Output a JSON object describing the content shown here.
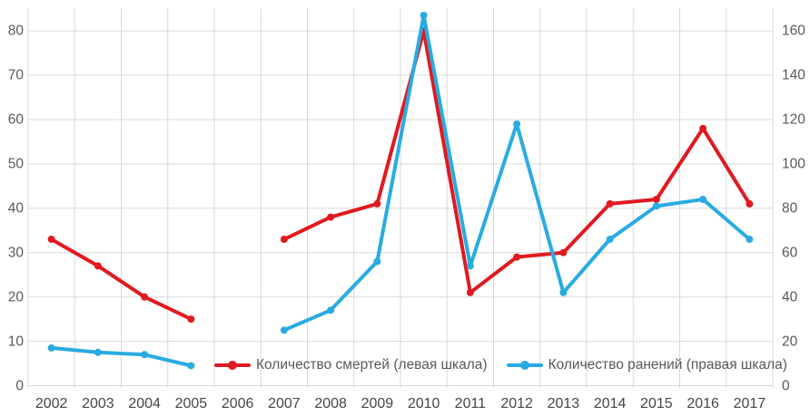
{
  "chart_data": {
    "type": "line",
    "title": "",
    "categories": [
      "2002",
      "2003",
      "2004",
      "2005",
      "2006",
      "2007",
      "2008",
      "2009",
      "2010",
      "2011",
      "2012",
      "2013",
      "2014",
      "2015",
      "2016",
      "2017"
    ],
    "series": [
      {
        "name": "Количество смертей (левая шкала)",
        "axis": "left",
        "color": "#e01a20",
        "values": [
          33,
          27,
          20,
          15,
          null,
          33,
          38,
          41,
          80,
          21,
          29,
          30,
          41,
          42,
          58,
          41
        ]
      },
      {
        "name": "Количество ранений (правая шкала)",
        "axis": "right",
        "color": "#29abe2",
        "values": [
          17,
          15,
          14,
          9,
          null,
          25,
          34,
          56,
          167,
          54,
          118,
          42,
          66,
          81,
          84,
          66
        ]
      }
    ],
    "left_axis": {
      "range": [
        0,
        80
      ],
      "tick_labels": [
        "0",
        "10",
        "20",
        "30",
        "40",
        "50",
        "60",
        "70",
        "80"
      ]
    },
    "right_axis": {
      "range": [
        0,
        160
      ],
      "tick_labels": [
        "0",
        "20",
        "40",
        "60",
        "80",
        "100",
        "120",
        "140",
        "160"
      ]
    },
    "grid": true,
    "legend_position": "bottom-inside"
  },
  "colors": {
    "grid": "#d9d9d9",
    "axis_text": "#595959",
    "year_text": "#474747",
    "background": "#ffffff"
  }
}
